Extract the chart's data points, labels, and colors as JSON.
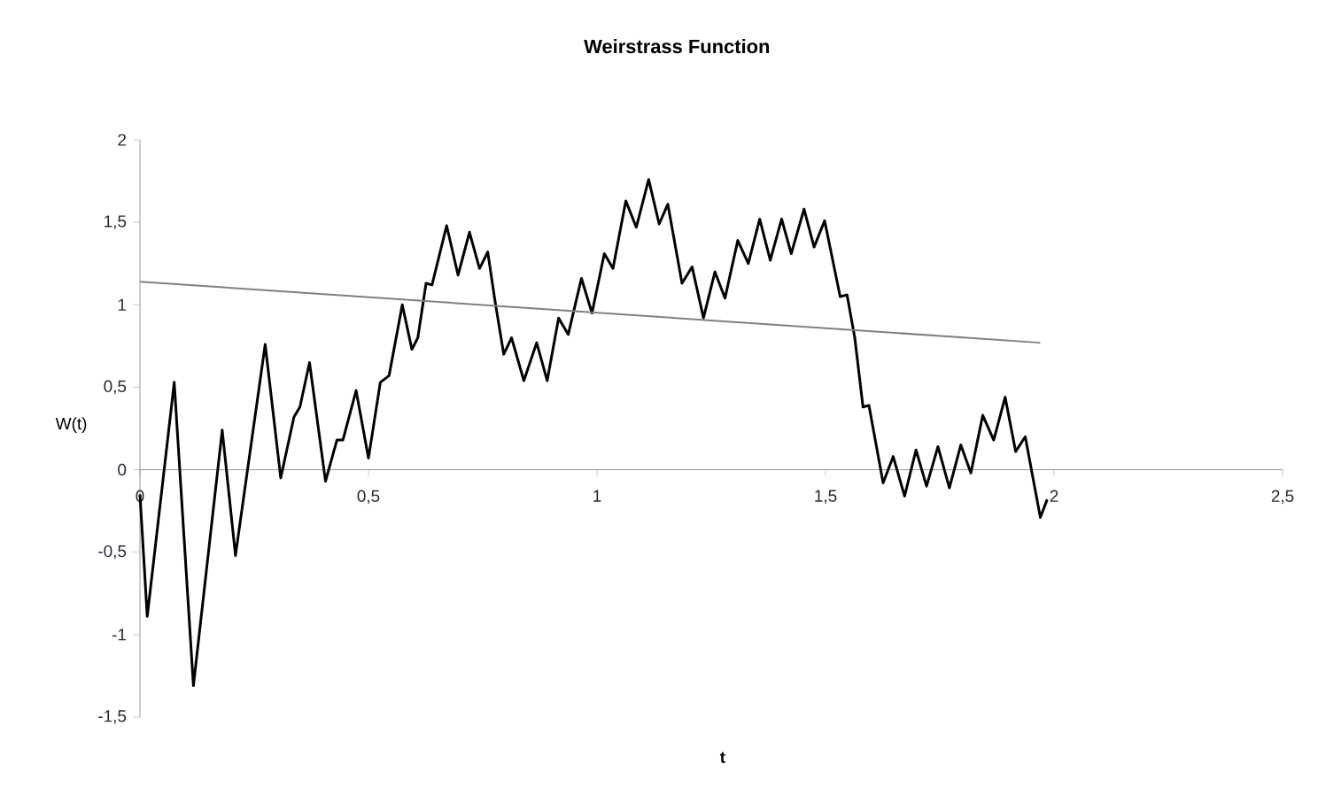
{
  "chart_data": {
    "type": "line",
    "title": "Weirstrass Function",
    "xlabel": "t",
    "ylabel": "W(t)",
    "xlim": [
      0,
      2.5
    ],
    "ylim": [
      -1.5,
      2
    ],
    "xticks": [
      0,
      {
        "value": 0.5,
        "label": "0,5"
      },
      1,
      {
        "value": 1.5,
        "label": "1,5"
      },
      2,
      {
        "value": 2.5,
        "label": "2,5"
      }
    ],
    "yticks": [
      {
        "value": -1.5,
        "label": "-1,5"
      },
      -1,
      {
        "value": -0.5,
        "label": "-0,5"
      },
      0,
      {
        "value": 0.5,
        "label": "0,5"
      },
      1,
      {
        "value": 1.5,
        "label": "1,5"
      },
      2
    ],
    "grid": false,
    "marker": "none",
    "line_style": "solid",
    "series": [
      {
        "color": "#000000",
        "x": [
          0,
          0.016,
          0.075,
          0.117,
          0.18,
          0.209,
          0.274,
          0.308,
          0.337,
          0.35,
          0.371,
          0.406,
          0.431,
          0.444,
          0.473,
          0.5,
          0.526,
          0.545,
          0.574,
          0.595,
          0.608,
          0.626,
          0.639,
          0.671,
          0.696,
          0.721,
          0.743,
          0.761,
          0.777,
          0.796,
          0.813,
          0.84,
          0.868,
          0.891,
          0.916,
          0.937,
          0.966,
          0.989,
          1.016,
          1.035,
          1.063,
          1.086,
          1.113,
          1.136,
          1.155,
          1.186,
          1.208,
          1.233,
          1.258,
          1.28,
          1.308,
          1.331,
          1.356,
          1.379,
          1.404,
          1.425,
          1.453,
          1.475,
          1.498,
          1.532,
          1.547,
          1.564,
          1.582,
          1.595,
          1.626,
          1.648,
          1.673,
          1.698,
          1.721,
          1.746,
          1.771,
          1.796,
          1.818,
          1.844,
          1.868,
          1.893,
          1.916,
          1.937,
          1.97,
          1.985
        ],
        "values": [
          -0.15,
          -0.89,
          0.53,
          -1.31,
          0.24,
          -0.52,
          0.76,
          -0.05,
          0.32,
          0.38,
          0.65,
          -0.07,
          0.18,
          0.18,
          0.48,
          0.07,
          0.53,
          0.57,
          1.0,
          0.73,
          0.8,
          1.13,
          1.12,
          1.48,
          1.18,
          1.44,
          1.22,
          1.32,
          1.02,
          0.7,
          0.8,
          0.54,
          0.77,
          0.54,
          0.92,
          0.82,
          1.16,
          0.95,
          1.31,
          1.22,
          1.63,
          1.47,
          1.76,
          1.49,
          1.61,
          1.13,
          1.23,
          0.92,
          1.2,
          1.04,
          1.39,
          1.25,
          1.52,
          1.27,
          1.52,
          1.31,
          1.58,
          1.35,
          1.51,
          1.05,
          1.06,
          0.8,
          0.38,
          0.39,
          -0.08,
          0.08,
          -0.16,
          0.12,
          -0.1,
          0.14,
          -0.11,
          0.15,
          -0.02,
          0.33,
          0.18,
          0.44,
          0.11,
          0.2,
          -0.29,
          -0.18
        ]
      },
      {
        "type": "line",
        "color": "#808080",
        "x": [
          0,
          1.97
        ],
        "values": [
          1.14,
          0.77
        ]
      }
    ]
  }
}
